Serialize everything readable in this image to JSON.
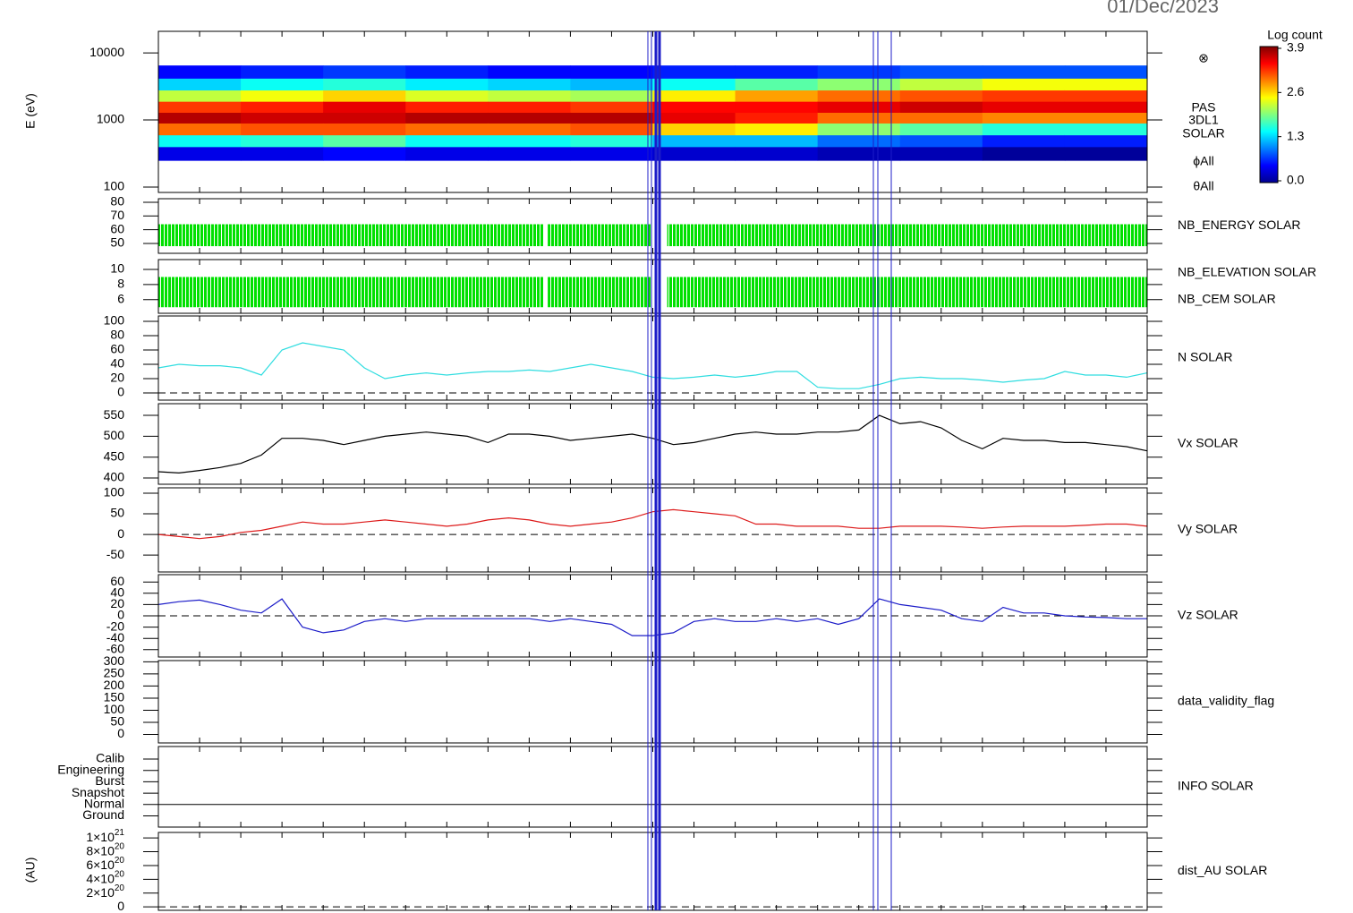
{
  "chart_data": [
    {
      "type": "spectrogram",
      "title": "01/Dec/2023",
      "ylabel": "E (eV)",
      "ylog": true,
      "ylim": [
        83,
        21000
      ],
      "yticks": [
        100,
        1000,
        10000
      ],
      "xlim": [
        0,
        24
      ],
      "xticks": [
        0,
        1,
        2,
        3,
        4,
        5,
        6,
        7,
        8,
        9,
        10,
        11,
        12,
        13,
        14,
        15,
        16,
        17,
        18,
        19,
        20,
        21,
        22,
        23,
        24
      ],
      "x_bins": [
        0,
        2,
        4,
        6,
        8,
        10,
        12,
        14,
        16,
        18,
        20,
        22,
        24
      ],
      "y_bins": [
        250,
        400,
        600,
        900,
        1300,
        1900,
        2800,
        4200,
        6500
      ],
      "values": [
        [
          0.4,
          1.5,
          3.0,
          3.7,
          3.2,
          2.2,
          1.3,
          0.5
        ],
        [
          0.4,
          1.6,
          3.1,
          3.6,
          3.3,
          2.4,
          1.5,
          0.6
        ],
        [
          0.5,
          1.8,
          3.1,
          3.6,
          3.5,
          2.6,
          1.6,
          0.7
        ],
        [
          0.4,
          1.5,
          3.0,
          3.7,
          3.3,
          2.3,
          1.4,
          0.6
        ],
        [
          0.4,
          1.5,
          3.0,
          3.7,
          3.3,
          2.2,
          1.3,
          0.5
        ],
        [
          0.4,
          1.6,
          3.1,
          3.7,
          3.2,
          2.1,
          1.2,
          0.5
        ],
        [
          0.3,
          1.2,
          2.6,
          3.5,
          3.4,
          2.5,
          1.5,
          0.6
        ],
        [
          0.3,
          1.2,
          2.5,
          3.3,
          3.4,
          2.8,
          1.8,
          0.6
        ],
        [
          0.2,
          0.9,
          2.0,
          3.0,
          3.5,
          3.0,
          2.0,
          0.7
        ],
        [
          0.2,
          0.8,
          1.8,
          3.0,
          3.6,
          3.1,
          2.2,
          0.8
        ],
        [
          0.1,
          0.6,
          1.6,
          2.9,
          3.5,
          3.2,
          2.4,
          0.8
        ],
        [
          0.1,
          0.6,
          1.6,
          2.9,
          3.5,
          3.2,
          2.4,
          0.8
        ]
      ],
      "clim": [
        0,
        3.9
      ],
      "colorbar_label": "Log count",
      "colorbar_ticks": [
        {
          "value": 0,
          "label": "0.0"
        },
        1.3,
        2.6,
        3.9
      ],
      "side_labels": [
        "⊗",
        "PAS",
        "3DL1",
        "SOLAR",
        "ϕAll",
        "θAll"
      ]
    },
    {
      "type": "range",
      "ylim": [
        42.8,
        82.6
      ],
      "yticks": [
        50,
        60,
        70,
        80
      ],
      "series": [
        {
          "name": "NB_ENERGY SOLAR",
          "color": "#00e000",
          "x_start": [
            0,
            9.45,
            12.35
          ],
          "x_end": [
            9.35,
            11.95,
            24
          ],
          "low": [
            48,
            48,
            48
          ],
          "high": [
            64,
            64,
            64
          ]
        }
      ]
    },
    {
      "type": "range",
      "ylim": [
        4.2,
        11.3
      ],
      "yticks": [
        6,
        8,
        10
      ],
      "series": [
        {
          "name": "NB_ELEVATION SOLAR",
          "color": "#00e000",
          "x_start": [
            0,
            9.45,
            12.35
          ],
          "x_end": [
            9.35,
            11.95,
            24
          ],
          "low": [
            5,
            5,
            5
          ],
          "high": [
            9,
            9,
            9
          ]
        },
        {
          "name": "NB_CEM SOLAR",
          "color": "#1c1cc8"
        }
      ]
    },
    {
      "type": "line",
      "ylim": [
        -10,
        107.5
      ],
      "yticks": [
        0,
        20,
        40,
        60,
        80,
        100
      ],
      "zero_line": true,
      "x": [
        0,
        0.5,
        1,
        1.5,
        2,
        2.5,
        3,
        3.5,
        4,
        4.5,
        5,
        5.5,
        6,
        6.5,
        7,
        7.5,
        8,
        8.5,
        9,
        9.5,
        10,
        10.5,
        11,
        11.5,
        12,
        12.5,
        13,
        13.5,
        14,
        14.5,
        15,
        15.5,
        16,
        16.5,
        17,
        17.5,
        18,
        18.5,
        19,
        19.5,
        20,
        20.5,
        21,
        21.5,
        22,
        22.5,
        23,
        23.5,
        24
      ],
      "series": [
        {
          "name": "N SOLAR",
          "color": "#30dde0",
          "values": [
            35,
            40,
            38,
            38,
            35,
            25,
            60,
            70,
            65,
            60,
            35,
            20,
            25,
            28,
            25,
            28,
            30,
            30,
            32,
            30,
            35,
            40,
            35,
            30,
            22,
            20,
            22,
            25,
            22,
            25,
            30,
            30,
            8,
            6,
            6,
            12,
            20,
            22,
            20,
            20,
            18,
            15,
            18,
            20,
            30,
            25,
            25,
            22,
            28
          ]
        }
      ]
    },
    {
      "type": "line",
      "ylim": [
        385,
        578
      ],
      "yticks": [
        400,
        450,
        500,
        550
      ],
      "x": [
        0,
        0.5,
        1,
        1.5,
        2,
        2.5,
        3,
        3.5,
        4,
        4.5,
        5,
        5.5,
        6,
        6.5,
        7,
        7.5,
        8,
        8.5,
        9,
        9.5,
        10,
        10.5,
        11,
        11.5,
        12,
        12.5,
        13,
        13.5,
        14,
        14.5,
        15,
        15.5,
        16,
        16.5,
        17,
        17.5,
        18,
        18.5,
        19,
        19.5,
        20,
        20.5,
        21,
        21.5,
        22,
        22.5,
        23,
        23.5,
        24
      ],
      "series": [
        {
          "name": "Vx SOLAR",
          "color": "#000000",
          "values": [
            415,
            412,
            418,
            425,
            435,
            455,
            495,
            495,
            490,
            480,
            490,
            500,
            505,
            510,
            505,
            500,
            485,
            505,
            505,
            500,
            490,
            495,
            500,
            505,
            495,
            480,
            485,
            495,
            505,
            510,
            505,
            505,
            510,
            510,
            515,
            550,
            530,
            535,
            520,
            490,
            470,
            495,
            490,
            490,
            485,
            485,
            480,
            475,
            465
          ]
        }
      ]
    },
    {
      "type": "line",
      "ylim": [
        -91,
        113
      ],
      "yticks": [
        -50,
        0,
        50,
        100
      ],
      "zero_line": true,
      "x": [
        0,
        0.5,
        1,
        1.5,
        2,
        2.5,
        3,
        3.5,
        4,
        4.5,
        5,
        5.5,
        6,
        6.5,
        7,
        7.5,
        8,
        8.5,
        9,
        9.5,
        10,
        10.5,
        11,
        11.5,
        12,
        12.5,
        13,
        13.5,
        14,
        14.5,
        15,
        15.5,
        16,
        16.5,
        17,
        17.5,
        18,
        18.5,
        19,
        19.5,
        20,
        20.5,
        21,
        21.5,
        22,
        22.5,
        23,
        23.5,
        24
      ],
      "series": [
        {
          "name": "Vy SOLAR",
          "color": "#dd1a1a",
          "values": [
            0,
            -5,
            -10,
            -5,
            5,
            10,
            20,
            30,
            25,
            25,
            30,
            35,
            30,
            25,
            20,
            25,
            35,
            40,
            35,
            25,
            20,
            25,
            30,
            40,
            55,
            60,
            55,
            50,
            45,
            25,
            25,
            20,
            20,
            20,
            15,
            15,
            20,
            20,
            20,
            18,
            15,
            18,
            20,
            20,
            20,
            22,
            25,
            25,
            20
          ]
        }
      ]
    },
    {
      "type": "line",
      "ylim": [
        -73,
        73
      ],
      "yticks": [
        -60,
        -40,
        -20,
        0,
        20,
        40,
        60
      ],
      "zero_line": true,
      "x": [
        0,
        0.5,
        1,
        1.5,
        2,
        2.5,
        3,
        3.5,
        4,
        4.5,
        5,
        5.5,
        6,
        6.5,
        7,
        7.5,
        8,
        8.5,
        9,
        9.5,
        10,
        10.5,
        11,
        11.5,
        12,
        12.5,
        13,
        13.5,
        14,
        14.5,
        15,
        15.5,
        16,
        16.5,
        17,
        17.5,
        18,
        18.5,
        19,
        19.5,
        20,
        20.5,
        21,
        21.5,
        22,
        22.5,
        23,
        23.5,
        24
      ],
      "series": [
        {
          "name": "Vz SOLAR",
          "color": "#1c1cc8",
          "values": [
            20,
            25,
            28,
            20,
            10,
            5,
            30,
            -20,
            -30,
            -25,
            -10,
            -5,
            -10,
            -5,
            -5,
            -5,
            -5,
            -5,
            -5,
            -10,
            -5,
            -10,
            -15,
            -35,
            -35,
            -30,
            -10,
            -5,
            -10,
            -10,
            -5,
            -10,
            -5,
            -15,
            -5,
            30,
            20,
            15,
            10,
            -5,
            -10,
            15,
            5,
            5,
            0,
            -2,
            -3,
            -5,
            -5
          ]
        }
      ]
    },
    {
      "type": "line",
      "ylim": [
        -35,
        305
      ],
      "yticks": [
        0,
        50,
        100,
        150,
        200,
        250,
        300
      ],
      "series": [
        {
          "name": "data_validity_flag",
          "color": "#000000"
        }
      ]
    },
    {
      "type": "category_line",
      "levels": [
        "Calib",
        "Engineering",
        "Burst",
        "Snapshot",
        "Normal",
        "Ground"
      ],
      "series": [
        {
          "name": "INFO SOLAR",
          "color": "#000000",
          "x": [
            0,
            24
          ],
          "values": [
            "Normal",
            "Normal"
          ]
        }
      ]
    },
    {
      "type": "line",
      "ylabel": "(AU)",
      "ylim": [
        -5e+19,
        1.08e+21
      ],
      "zero_line": true,
      "yticks": [
        0,
        {
          "value": 2e+20,
          "label": "2×10",
          "exponent": "20"
        },
        {
          "value": 4e+20,
          "label": "4×10",
          "exponent": "20"
        },
        {
          "value": 6e+20,
          "label": "6×10",
          "exponent": "20"
        },
        {
          "value": 8e+20,
          "label": "8×10",
          "exponent": "20"
        },
        {
          "value": 1e+21,
          "label": "1×10",
          "exponent": "21"
        }
      ],
      "series": [
        {
          "name": "dist_AU SOLAR",
          "color": "#000000"
        }
      ]
    }
  ]
}
